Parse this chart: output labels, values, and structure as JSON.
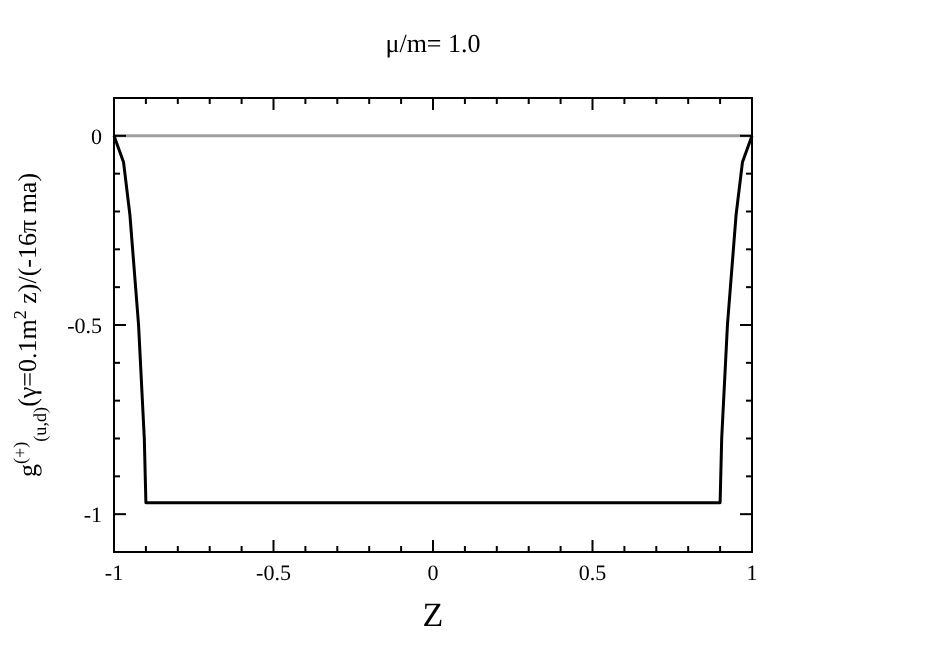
{
  "chart_data": {
    "type": "line",
    "title": "μ/m= 1.0",
    "xlabel": "Z",
    "ylabel": "g$^{(+)}$$_{(u,d)}$(γ=0.1m$^{2}$ z)/(-16π ma)",
    "x": [
      -1,
      -0.97,
      -0.95,
      -0.923,
      -0.905,
      -0.9,
      0.9,
      0.905,
      0.923,
      0.95,
      0.97,
      1
    ],
    "series": [
      {
        "color": "#000000",
        "values": [
          0,
          -0.07,
          -0.21,
          -0.5,
          -0.8,
          -0.97,
          -0.97,
          -0.8,
          -0.5,
          -0.21,
          -0.07,
          0
        ]
      }
    ],
    "xlim": [
      -1,
      1
    ],
    "ylim": [
      -1.1,
      0.1
    ],
    "xticks": [
      -1,
      {
        "value": -0.9,
        "label": null
      },
      {
        "value": -0.8,
        "label": null
      },
      {
        "value": -0.7,
        "label": null
      },
      {
        "value": -0.6,
        "label": null
      },
      -0.5,
      {
        "value": -0.4,
        "label": null
      },
      {
        "value": -0.3,
        "label": null
      },
      {
        "value": -0.2,
        "label": null
      },
      {
        "value": -0.1,
        "label": null
      },
      0,
      {
        "value": 0.1,
        "label": null
      },
      {
        "value": 0.2,
        "label": null
      },
      {
        "value": 0.3,
        "label": null
      },
      {
        "value": 0.4,
        "label": null
      },
      0.5,
      {
        "value": 0.6,
        "label": null
      },
      {
        "value": 0.7,
        "label": null
      },
      {
        "value": 0.8,
        "label": null
      },
      {
        "value": 0.9,
        "label": null
      },
      1
    ],
    "yticks": [
      -1,
      {
        "value": -0.9,
        "label": null
      },
      {
        "value": -0.8,
        "label": null
      },
      {
        "value": -0.7,
        "label": null
      },
      {
        "value": -0.6,
        "label": null
      },
      -0.5,
      {
        "value": -0.4,
        "label": null
      },
      {
        "value": -0.3,
        "label": null
      },
      {
        "value": -0.2,
        "label": null
      },
      {
        "value": -0.1,
        "label": null
      },
      0
    ],
    "ref_lines": [
      {
        "axis": "y",
        "value": 0,
        "color": "#a0a0a0"
      }
    ],
    "marker": "none",
    "line_style": "solid"
  }
}
